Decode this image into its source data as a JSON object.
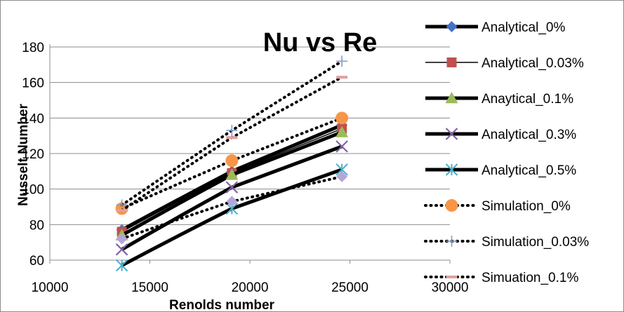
{
  "chart_data": {
    "type": "line",
    "title": "Nu vs Re",
    "xlabel": "Renolds number",
    "ylabel": "Nusselt Number",
    "xlim": [
      10000,
      30000
    ],
    "ylim": [
      60,
      180
    ],
    "x_ticks": [
      10000,
      15000,
      20000,
      25000,
      30000
    ],
    "y_ticks": [
      60,
      80,
      100,
      120,
      140,
      160,
      180
    ],
    "x_tick_labels": [
      "10000",
      "15000",
      "20000",
      "25000",
      "30000"
    ],
    "y_tick_labels": [
      "60",
      "80",
      "100",
      "120",
      "140",
      "160",
      "180"
    ],
    "grid": "horizontal",
    "legend_position": "right",
    "series": [
      {
        "name": "Analytical_0%",
        "line": "solid-thick",
        "color": "#000000",
        "marker": "diamond",
        "marker_color": "#4472c4",
        "x": [
          13600,
          19100,
          24600
        ],
        "y": [
          77,
          110,
          136
        ]
      },
      {
        "name": "Analytical_0.03%",
        "line": "solid-thin",
        "color": "#000000",
        "marker": "square",
        "marker_color": "#c0504d",
        "x": [
          13600,
          19100,
          24600
        ],
        "y": [
          76,
          109,
          134
        ]
      },
      {
        "name": "Anaytical_0.1%",
        "line": "solid-thick",
        "color": "#000000",
        "marker": "triangle",
        "marker_color": "#9bbb59",
        "x": [
          13600,
          19100,
          24600
        ],
        "y": [
          74,
          108,
          132
        ]
      },
      {
        "name": "Analytical_0.3%",
        "line": "solid-thick",
        "color": "#000000",
        "marker": "x",
        "marker_color": "#8064a2",
        "x": [
          13600,
          19100,
          24600
        ],
        "y": [
          66,
          101,
          124
        ]
      },
      {
        "name": "Analytical_0.5%",
        "line": "solid-thick",
        "color": "#000000",
        "marker": "asterisk",
        "marker_color": "#4bacc6",
        "x": [
          13600,
          19100,
          24600
        ],
        "y": [
          57,
          89,
          111
        ]
      },
      {
        "name": "Simulation_0%",
        "line": "dotted",
        "color": "#000000",
        "marker": "circle",
        "marker_color": "#f79646",
        "x": [
          13600,
          19100,
          24600
        ],
        "y": [
          89,
          116,
          140
        ]
      },
      {
        "name": "Simulation_0.03%",
        "line": "dotted",
        "color": "#000000",
        "marker": "plus",
        "marker_color": "#7f9fd0",
        "x": [
          13600,
          19100,
          24600
        ],
        "y": [
          91,
          133,
          172
        ]
      },
      {
        "name": "Simuation_0.1%",
        "line": "dotted",
        "color": "#000000",
        "marker": "dash",
        "marker_color": "#e0a0a0",
        "x": [
          13600,
          19100,
          24600
        ],
        "y": [
          88,
          129,
          163
        ]
      },
      {
        "name": "",
        "line": "dotted",
        "color": "#000000",
        "marker": "diamond",
        "marker_color": "#b4a7d6",
        "x": [
          13600,
          19100,
          24600
        ],
        "y": [
          72,
          93,
          107
        ]
      }
    ]
  }
}
